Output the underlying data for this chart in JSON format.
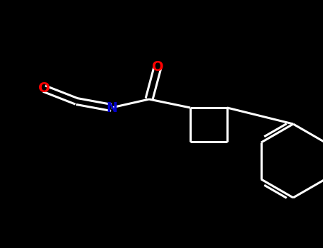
{
  "bg_color": "#000000",
  "bond_color": "#ffffff",
  "O_color": "#ff0000",
  "N_color": "#0000cd",
  "line_width": 2.2,
  "figsize": [
    4.55,
    3.5
  ],
  "dpi": 100,
  "xlim": [
    0,
    455
  ],
  "ylim": [
    0,
    350
  ]
}
